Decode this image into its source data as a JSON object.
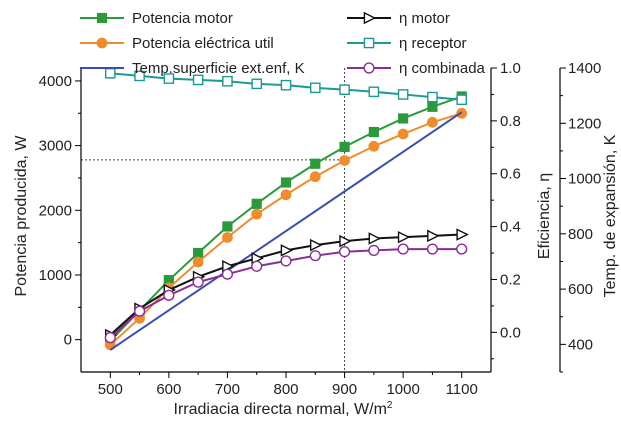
{
  "chart_data": {
    "type": "line",
    "x": [
      500,
      550,
      600,
      650,
      700,
      750,
      800,
      850,
      900,
      950,
      1000,
      1050,
      1100
    ],
    "xlabel": "Irradiacia directa normal, W/m",
    "xlabel_sup": "2",
    "ylabel_left": "Potencia producida, W",
    "ylabel_right1": "Eficiencia, η",
    "ylabel_right2": "Temp. de expansión, K",
    "xlim": [
      450,
      1150
    ],
    "ylim_left": [
      -500,
      4200
    ],
    "ylim_eff": [
      -0.15,
      1.0
    ],
    "ylim_temp": [
      300,
      1400
    ],
    "xticks": [
      "500",
      "600",
      "700",
      "800",
      "900",
      "1000",
      "1100"
    ],
    "yticks_left": [
      "0",
      "1000",
      "2000",
      "3000",
      "4000"
    ],
    "yticks_eff": [
      "0.0",
      "0.2",
      "0.4",
      "0.6",
      "0.8",
      "1.0"
    ],
    "yticks_temp": [
      "400",
      "600",
      "800",
      "1000",
      "1200",
      "1400"
    ],
    "grid": false,
    "legend_position": "top",
    "reference_lines": {
      "vertical_x": 900,
      "horizontal_y": 2780
    },
    "series": [
      {
        "name": "Potencia motor",
        "axis": "left",
        "color": "#2a9a3a",
        "marker": "filled-square",
        "values": [
          -20,
          450,
          920,
          1340,
          1750,
          2100,
          2430,
          2720,
          2980,
          3210,
          3420,
          3600,
          3760
        ]
      },
      {
        "name": "Potencia eléctrica util",
        "axis": "left",
        "color": "#ef8c2c",
        "marker": "filled-circle",
        "values": [
          -80,
          330,
          800,
          1200,
          1580,
          1940,
          2240,
          2520,
          2770,
          2990,
          3180,
          3360,
          3500
        ]
      },
      {
        "name": "Temp.superficie ext.enf, K",
        "axis": "temp",
        "color": "#3a4db0",
        "marker": "none",
        "x": [
          500,
          1100
        ],
        "values": [
          380,
          1240
        ]
      },
      {
        "name": "η motor",
        "axis": "eff",
        "color": "#111111",
        "marker": "open-triangle-right",
        "values": [
          -0.01,
          0.09,
          0.16,
          0.21,
          0.25,
          0.28,
          0.31,
          0.33,
          0.345,
          0.355,
          0.36,
          0.365,
          0.37
        ]
      },
      {
        "name": "η receptor",
        "axis": "eff",
        "color": "#1a9a94",
        "marker": "open-square",
        "values": [
          0.98,
          0.97,
          0.96,
          0.955,
          0.95,
          0.94,
          0.935,
          0.925,
          0.918,
          0.91,
          0.9,
          0.89,
          0.88
        ]
      },
      {
        "name": "η combinada",
        "axis": "eff",
        "color": "#8a2d96",
        "marker": "open-circle",
        "values": [
          -0.02,
          0.08,
          0.14,
          0.19,
          0.22,
          0.25,
          0.27,
          0.29,
          0.305,
          0.31,
          0.315,
          0.315,
          0.315
        ]
      }
    ]
  }
}
